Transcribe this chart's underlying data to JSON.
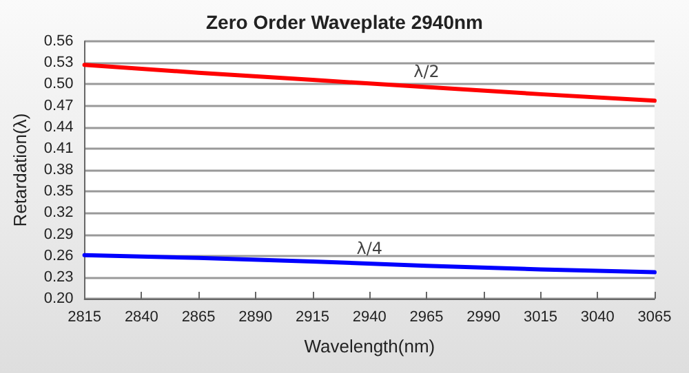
{
  "chart_data": {
    "type": "line",
    "title": "Zero Order Waveplate 2940nm",
    "xlabel": "Wavelength(nm)",
    "ylabel": "Retardation(λ)",
    "x": [
      2815,
      2865,
      2915,
      2965,
      3015,
      3065
    ],
    "series": [
      {
        "color": "#ff0000",
        "values": [
          0.527,
          0.516,
          0.506,
          0.496,
          0.486,
          0.477
        ]
      },
      {
        "color": "#0000ff",
        "values": [
          0.261,
          0.257,
          0.252,
          0.246,
          0.241,
          0.237
        ]
      }
    ],
    "annotations": [
      {
        "text": "λ/2",
        "x": 2965,
        "y": 0.496
      },
      {
        "text": "λ/4",
        "x": 2940,
        "y": 0.249
      }
    ],
    "xlim": [
      2815,
      3065
    ],
    "xticks": [
      2815,
      2840,
      2865,
      2890,
      2915,
      2940,
      2965,
      2990,
      3015,
      3040,
      3065
    ],
    "ylim": [
      0.2,
      0.56
    ],
    "yticks": [
      {
        "value": 0.2,
        "label": "0.20"
      },
      0.23,
      0.26,
      0.29,
      0.32,
      0.35,
      0.38,
      0.41,
      0.44,
      0.47,
      {
        "value": 0.5,
        "label": "0.50"
      },
      0.53,
      0.56
    ],
    "grid": "y",
    "marker": "none",
    "line_style": "solid"
  }
}
